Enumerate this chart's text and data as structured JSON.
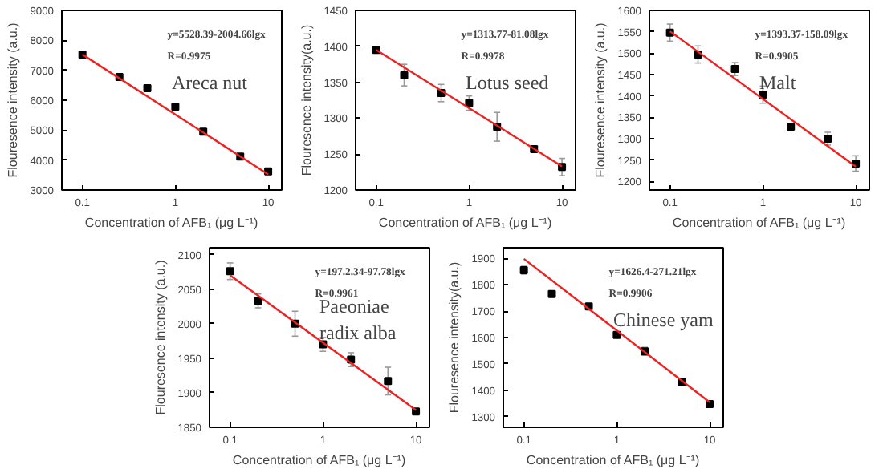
{
  "chart_data": [
    {
      "type": "scatter",
      "xlabel": "Concentration of AFB₁ (μg L⁻¹)",
      "ylabel": "Flouresence intensity (a.u.)",
      "log": "x",
      "xlim": [
        0.06,
        14
      ],
      "xticks": [
        0.1,
        1,
        10
      ],
      "ylim": [
        3000,
        9000
      ],
      "yticks": [
        3000,
        4000,
        5000,
        6000,
        7000,
        8000,
        9000
      ],
      "grid": false,
      "marker": "square",
      "annotations": [
        "y=5528.39-2004.66lgx",
        "R=0.9975",
        "Areca nut"
      ],
      "series": [
        {
          "color": "#000000",
          "x": [
            0.1,
            0.25,
            0.5,
            1,
            2,
            5,
            10
          ],
          "values": [
            7520,
            6780,
            6400,
            5780,
            4950,
            4120,
            3620
          ],
          "errors": [
            80,
            60,
            60,
            100,
            80,
            80,
            40
          ]
        },
        {
          "type": "line",
          "color": "#ee2020",
          "line_style": "solid",
          "x": [
            0.1,
            10
          ],
          "values": [
            7530,
            3520
          ],
          "marker": "none"
        }
      ]
    },
    {
      "type": "scatter",
      "xlabel": "Concentration of AFB₁ (μg L⁻¹)",
      "ylabel": "Flouresence intensity(a.u.)",
      "log": "x",
      "xlim": [
        0.06,
        14
      ],
      "xticks": [
        0.1,
        1,
        10
      ],
      "ylim": [
        1200,
        1450
      ],
      "yticks": [
        1200,
        1250,
        1300,
        1350,
        1400,
        1450
      ],
      "grid": false,
      "marker": "square",
      "annotations": [
        "y=1313.77-81.08lgx",
        "R=0.9978",
        "Lotus seed"
      ],
      "series": [
        {
          "color": "#000000",
          "x": [
            0.1,
            0.2,
            0.5,
            1,
            2,
            5,
            10
          ],
          "values": [
            1395,
            1360,
            1335,
            1321,
            1288,
            1257,
            1232
          ],
          "errors": [
            3,
            15,
            12,
            10,
            20,
            4,
            12
          ]
        },
        {
          "type": "line",
          "color": "#ee2020",
          "line_style": "solid",
          "x": [
            0.1,
            10
          ],
          "values": [
            1395,
            1233
          ],
          "marker": "none"
        }
      ]
    },
    {
      "type": "scatter",
      "xlabel": "Concentration of AFB₁ (μg L⁻¹)",
      "ylabel": "Flouresence intensity (a.u.)",
      "log": "x",
      "xlim": [
        0.06,
        14
      ],
      "xticks": [
        0.1,
        1,
        10
      ],
      "ylim": [
        1180,
        1600
      ],
      "yticks": [
        1200,
        1250,
        1300,
        1350,
        1400,
        1450,
        1500,
        1550,
        1600
      ],
      "grid": false,
      "marker": "square",
      "annotations": [
        "y=1393.37-158.09lgx",
        "R=0.9905",
        "Malt"
      ],
      "series": [
        {
          "color": "#000000",
          "x": [
            0.1,
            0.2,
            0.5,
            1,
            2,
            5,
            10
          ],
          "values": [
            1548,
            1497,
            1463,
            1403,
            1328,
            1300,
            1242
          ],
          "errors": [
            20,
            20,
            15,
            20,
            8,
            15,
            18
          ]
        },
        {
          "type": "line",
          "color": "#ee2020",
          "line_style": "solid",
          "x": [
            0.1,
            10
          ],
          "values": [
            1551,
            1235
          ],
          "marker": "none"
        }
      ]
    },
    {
      "type": "scatter",
      "xlabel": "Concentration of AFB₁ (μg L⁻¹)",
      "ylabel": "Flouresence intensity (a.u.)",
      "log": "x",
      "xlim": [
        0.06,
        14
      ],
      "xticks": [
        0.1,
        1,
        10
      ],
      "ylim": [
        1850,
        2110
      ],
      "yticks": [
        1850,
        1900,
        1950,
        2000,
        2050,
        2100
      ],
      "grid": false,
      "marker": "square",
      "annotations": [
        "y=197.2.34-97.78lgx",
        "R=0.9961",
        "Paeoniae\nradix alba"
      ],
      "series": [
        {
          "color": "#000000",
          "x": [
            0.1,
            0.2,
            0.5,
            1,
            2,
            5,
            10
          ],
          "values": [
            2076,
            2033,
            2000,
            1970,
            1948,
            1917,
            1873
          ],
          "errors": [
            12,
            10,
            18,
            10,
            10,
            20,
            3
          ]
        },
        {
          "type": "line",
          "color": "#ee2020",
          "line_style": "solid",
          "x": [
            0.1,
            10
          ],
          "values": [
            2070,
            1875
          ],
          "marker": "none"
        }
      ]
    },
    {
      "type": "scatter",
      "xlabel": "Concentration of AFB₁ (μg L⁻¹)",
      "ylabel": "Flouresence intensity(a.u.)",
      "log": "x",
      "xlim": [
        0.06,
        14
      ],
      "xticks": [
        0.1,
        1,
        10
      ],
      "ylim": [
        1260,
        1940
      ],
      "yticks": [
        1300,
        1400,
        1500,
        1600,
        1700,
        1800,
        1900
      ],
      "grid": false,
      "marker": "square",
      "annotations": [
        "y=1626.4-271.21lgx",
        "R=0.9906",
        "Chinese yam"
      ],
      "series": [
        {
          "color": "#000000",
          "x": [
            0.1,
            0.2,
            0.5,
            1,
            2,
            5,
            10
          ],
          "values": [
            1855,
            1765,
            1718,
            1610,
            1548,
            1432,
            1348
          ],
          "errors": [
            15,
            5,
            5,
            10,
            15,
            5,
            5
          ]
        },
        {
          "type": "line",
          "color": "#ee2020",
          "line_style": "solid",
          "x": [
            0.1,
            10
          ],
          "values": [
            1898,
            1355
          ],
          "marker": "none"
        }
      ]
    }
  ]
}
